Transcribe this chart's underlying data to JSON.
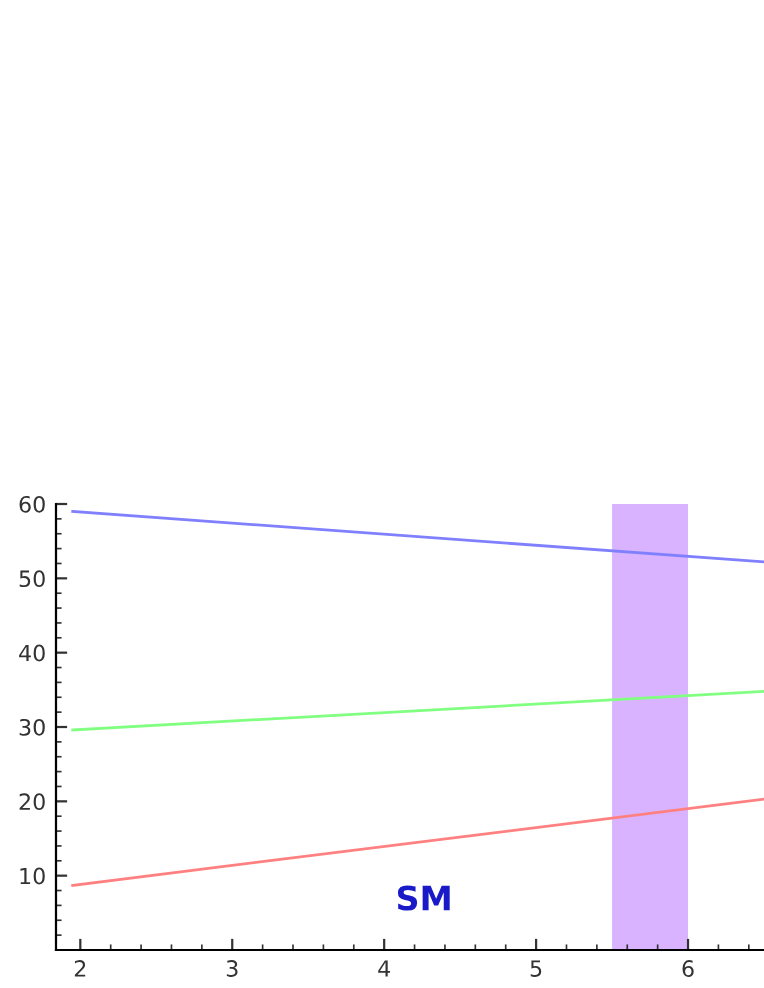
{
  "chart_data": {
    "type": "line",
    "series": [
      {
        "color": "#8080ff",
        "values": [
          59,
          52.2
        ]
      },
      {
        "color": "#80ff80",
        "values": [
          29.6,
          34.8
        ]
      },
      {
        "color": "#ff8080",
        "values": [
          8.7,
          20.3
        ]
      }
    ],
    "x": [
      1.95,
      6.5
    ],
    "xlim": [
      1.84,
      6.5
    ],
    "ylim": [
      0,
      60
    ],
    "xticks": [
      2,
      3,
      4,
      5,
      6
    ],
    "yticks": [
      10,
      20,
      30,
      40,
      50,
      60
    ],
    "bands": [
      {
        "axis": "x",
        "from": 5.5,
        "to": 6,
        "color": "#d9b3ff"
      }
    ],
    "annotations": [
      "SM"
    ],
    "grid": false,
    "marker": "none",
    "line_style": "solid"
  }
}
